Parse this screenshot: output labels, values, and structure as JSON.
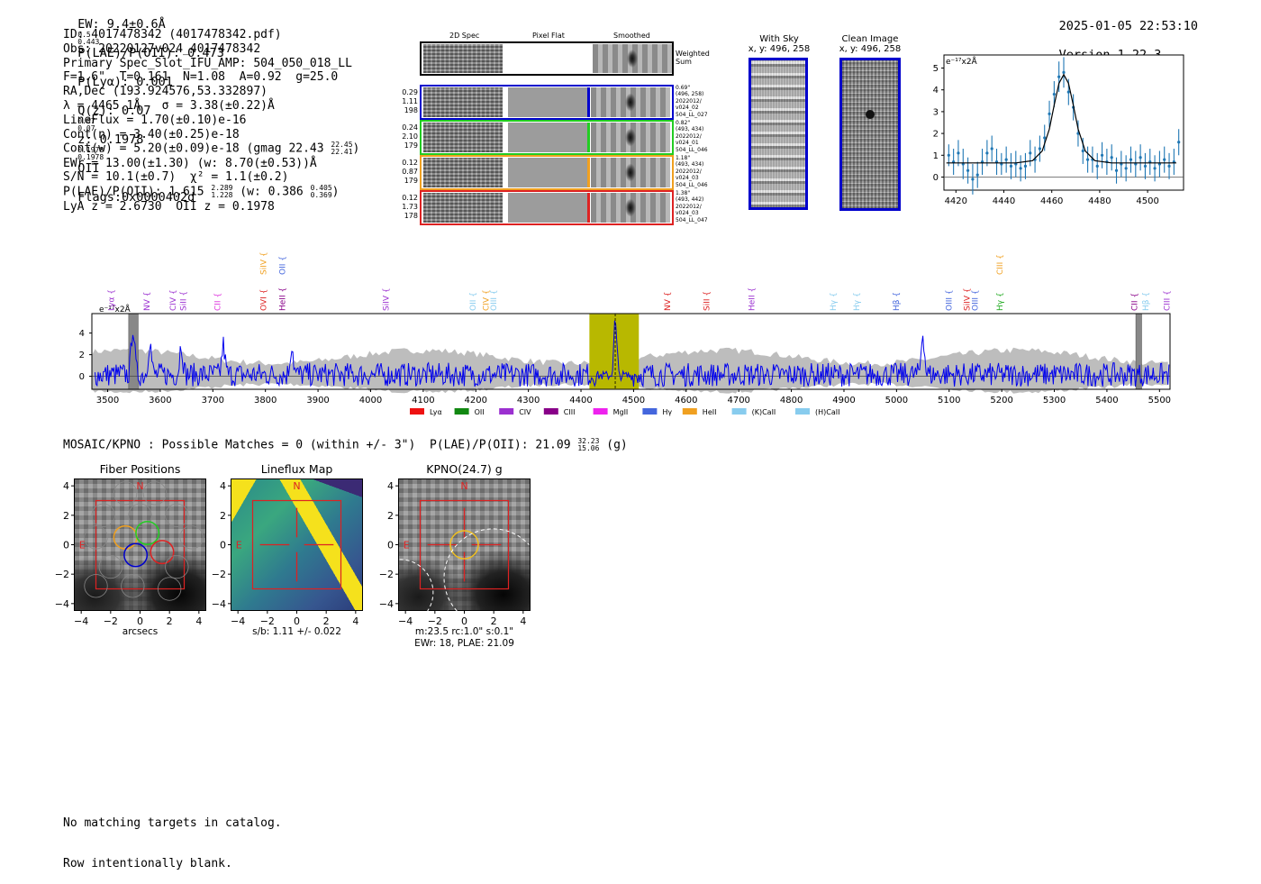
{
  "header": {
    "ew": "EW: 9.4±0.6Å",
    "ew_sup": "0.5",
    "ew_sub": "0.443",
    "plae_label": "P(LAE)/P(OII): 0.473",
    "plya": "P(Lyα): 0.001",
    "qz": "Q(z): 0.07",
    "qz_sup": "0.07",
    "qz_sub": "0.07",
    "z": "z: 0.1978",
    "z_sup": "0.1978",
    "z_sub": "0.1978",
    "z_line": "OII",
    "flags": "Flags:0x0000402d",
    "timestamp": "2025-01-05 22:53:10",
    "version": "Version 1.22.3"
  },
  "info": {
    "id": "ID: 4017478342 (4017478342.pdf)",
    "obs": "Obs: 20220127v024_4017478342",
    "primary": "Primary Spec_Slot_IFU_AMP: 504_050_018_LL",
    "params": "F=1.6\"  T=0.161  N=1.08  A=0.92  g=25.0",
    "radec": "RA,Dec (193.924576,53.332897)",
    "lambda": "λ = 4465.1Å   σ = 3.38(±0.22)Å",
    "lineflux": "LineFlux = 1.70(±0.10)e-16",
    "contn": "Cont(n) = 3.40(±0.25)e-18",
    "contw": "Cont(w) = 5.20(±0.09)e-18 (gmag 22.43",
    "contw_sup": "22.45",
    "contw_sub": "22.41",
    "contw_end": ")",
    "ewr": "EWr = 13.00(±1.30) (w: 8.70(±0.53))Å",
    "sn": "S/N = 10.1(±0.7)  χ² = 1.1(±0.2)",
    "plae": "P(LAE)/P(OII): 1.615",
    "plae_sup": "2.289",
    "plae_sub": "1.228",
    "plae_w": "(w: 0.386",
    "plae_w_sup": "0.405",
    "plae_w_sub": "0.369",
    "plae_end": ")",
    "lya": "LyA z = 2.6730  OII z = 0.1978"
  },
  "cutouts": {
    "col_labels": [
      "2D Spec",
      "Pixel Flat",
      "Smoothed"
    ],
    "weighted_label": "Weighted\nSum",
    "rows": [
      {
        "color": "#0000cc",
        "left": [
          "0.29",
          "1.11",
          "198"
        ],
        "right": [
          "0.69\"",
          "(496, 258)",
          "2022012/",
          "v024_02",
          "504_LL_027"
        ]
      },
      {
        "color": "#22cc22",
        "left": [
          "0.24",
          "2.10",
          "179"
        ],
        "right": [
          "0.82\"",
          "(493, 434)",
          "2022012/",
          "v024_01",
          "504_LL_046"
        ]
      },
      {
        "color": "#f0a020",
        "left": [
          "0.12",
          "0.87",
          "179"
        ],
        "right": [
          "1.18\"",
          "(493, 434)",
          "2022012/",
          "v024_03",
          "504_LL_046"
        ]
      },
      {
        "color": "#dd2222",
        "left": [
          "0.12",
          "1.73",
          "178"
        ],
        "right": [
          "1.38\"",
          "(493, 442)",
          "2022012/",
          "v024_03",
          "504_LL_047"
        ]
      }
    ]
  },
  "thumbs": {
    "sky_title": "With Sky",
    "sky_xy": "x, y: 496, 258",
    "clean_title": "Clean Image",
    "clean_xy": "x, y: 496, 258"
  },
  "zoom_fit": {
    "unit_label": "e⁻¹⁷x2Å",
    "x_ticks": [
      "4420",
      "4440",
      "4460",
      "4480",
      "4500"
    ],
    "y_ticks": [
      "5",
      "4",
      "3",
      "2",
      "1",
      "0"
    ]
  },
  "spectrum": {
    "unit_label": "e⁻¹⁷x2Å",
    "x_ticks": [
      "3500",
      "3600",
      "3700",
      "3800",
      "3900",
      "4000",
      "4100",
      "4200",
      "4300",
      "4400",
      "4500",
      "4600",
      "4700",
      "4800",
      "4900",
      "5000",
      "5100",
      "5200",
      "5300",
      "5400",
      "5500"
    ],
    "y_ticks": [
      "4",
      "2",
      "0"
    ],
    "line_labels": [
      {
        "text": "Lyα",
        "color": "#9b30d0",
        "lam": 3508,
        "row": 1
      },
      {
        "text": "NV",
        "color": "#9b30d0",
        "lam": 3575,
        "row": 1
      },
      {
        "text": "CIV",
        "color": "#9b30d0",
        "lam": 3625,
        "row": 1
      },
      {
        "text": "SiII",
        "color": "#9b30d0",
        "lam": 3645,
        "row": 1
      },
      {
        "text": "CII",
        "color": "#dd33dd",
        "lam": 3710,
        "row": 1
      },
      {
        "text": "SiIV",
        "color": "#f0a020",
        "lam": 3797,
        "row": 0
      },
      {
        "text": "OVI",
        "color": "#dd2222",
        "lam": 3797,
        "row": 1
      },
      {
        "text": "OII",
        "color": "#4466dd",
        "lam": 3833,
        "row": 0
      },
      {
        "text": "HeII",
        "color": "#880088",
        "lam": 3833,
        "row": 1
      },
      {
        "text": "SiIV",
        "color": "#9b30d0",
        "lam": 4030,
        "row": 1
      },
      {
        "text": "OII",
        "color": "#88ccee",
        "lam": 4195,
        "row": 1
      },
      {
        "text": "CIV",
        "color": "#f0a020",
        "lam": 4220,
        "row": 1
      },
      {
        "text": "OIII",
        "color": "#88ccee",
        "lam": 4235,
        "row": 1
      },
      {
        "text": "NV",
        "color": "#dd2222",
        "lam": 4565,
        "row": 1
      },
      {
        "text": "SiII",
        "color": "#dd2222",
        "lam": 4640,
        "row": 1
      },
      {
        "text": "HeII",
        "color": "#9b30d0",
        "lam": 4725,
        "row": 1
      },
      {
        "text": "Hγ",
        "color": "#88ccee",
        "lam": 4880,
        "row": 1
      },
      {
        "text": "Hγ",
        "color": "#88ccee",
        "lam": 4925,
        "row": 1
      },
      {
        "text": "Hβ",
        "color": "#4466dd",
        "lam": 5000,
        "row": 1
      },
      {
        "text": "OIII",
        "color": "#4466dd",
        "lam": 5100,
        "row": 1
      },
      {
        "text": "SiIV",
        "color": "#dd2222",
        "lam": 5135,
        "row": 1
      },
      {
        "text": "OIII",
        "color": "#4466dd",
        "lam": 5150,
        "row": 1
      },
      {
        "text": "CIII",
        "color": "#f0a020",
        "lam": 5197,
        "row": 0
      },
      {
        "text": "Hγ",
        "color": "#22aa22",
        "lam": 5197,
        "row": 1
      },
      {
        "text": "CII",
        "color": "#880088",
        "lam": 5453,
        "row": 1
      },
      {
        "text": "Hβ",
        "color": "#88ccee",
        "lam": 5475,
        "row": 1
      },
      {
        "text": "CIII",
        "color": "#9b30d0",
        "lam": 5515,
        "row": 1
      }
    ],
    "legend": [
      {
        "label": "Lyα",
        "color": "#ee1111"
      },
      {
        "label": "OII",
        "color": "#118811"
      },
      {
        "label": "CIV",
        "color": "#9b30d0"
      },
      {
        "label": "CIII",
        "color": "#880088"
      },
      {
        "label": "MgII",
        "color": "#ee22ee"
      },
      {
        "label": "Hγ",
        "color": "#4466dd"
      },
      {
        "label": "HeII",
        "color": "#f0a020"
      },
      {
        "label": "(K)CaII",
        "color": "#88ccee"
      },
      {
        "label": "(H)CaII",
        "color": "#88ccee"
      }
    ]
  },
  "chart_data": [
    {
      "type": "line",
      "title": "",
      "ylabel": "e⁻¹⁷x2Å",
      "xlim": [
        4415,
        4515
      ],
      "ylim": [
        -0.6,
        5.6
      ],
      "fit_x": [
        4416,
        4445,
        4452,
        4456,
        4459,
        4461,
        4463,
        4465,
        4467,
        4469,
        4471,
        4474,
        4478,
        4485,
        4512
      ],
      "fit_y": [
        0.65,
        0.65,
        0.75,
        1.2,
        2.2,
        3.3,
        4.3,
        4.7,
        4.3,
        3.3,
        2.2,
        1.2,
        0.75,
        0.65,
        0.65
      ],
      "points": [
        {
          "x": 4417,
          "y": 1.0,
          "err": 0.5
        },
        {
          "x": 4419,
          "y": 0.7,
          "err": 0.6
        },
        {
          "x": 4421,
          "y": 1.1,
          "err": 0.6
        },
        {
          "x": 4423,
          "y": 0.6,
          "err": 0.7
        },
        {
          "x": 4425,
          "y": 0.3,
          "err": 0.6
        },
        {
          "x": 4427,
          "y": -0.1,
          "err": 0.7
        },
        {
          "x": 4429,
          "y": 0.1,
          "err": 0.6
        },
        {
          "x": 4431,
          "y": 0.7,
          "err": 0.6
        },
        {
          "x": 4433,
          "y": 1.1,
          "err": 0.6
        },
        {
          "x": 4435,
          "y": 1.3,
          "err": 0.6
        },
        {
          "x": 4437,
          "y": 0.7,
          "err": 0.6
        },
        {
          "x": 4439,
          "y": 0.6,
          "err": 0.5
        },
        {
          "x": 4441,
          "y": 0.8,
          "err": 0.6
        },
        {
          "x": 4443,
          "y": 0.5,
          "err": 0.6
        },
        {
          "x": 4445,
          "y": 0.6,
          "err": 0.6
        },
        {
          "x": 4447,
          "y": 0.4,
          "err": 0.6
        },
        {
          "x": 4449,
          "y": 0.5,
          "err": 0.6
        },
        {
          "x": 4451,
          "y": 1.1,
          "err": 0.6
        },
        {
          "x": 4453,
          "y": 0.8,
          "err": 0.6
        },
        {
          "x": 4455,
          "y": 1.3,
          "err": 0.6
        },
        {
          "x": 4457,
          "y": 1.8,
          "err": 0.6
        },
        {
          "x": 4459,
          "y": 2.9,
          "err": 0.6
        },
        {
          "x": 4461,
          "y": 3.8,
          "err": 0.6
        },
        {
          "x": 4463,
          "y": 4.6,
          "err": 0.7
        },
        {
          "x": 4465,
          "y": 4.8,
          "err": 0.7
        },
        {
          "x": 4467,
          "y": 3.9,
          "err": 0.6
        },
        {
          "x": 4469,
          "y": 3.2,
          "err": 0.6
        },
        {
          "x": 4471,
          "y": 2.0,
          "err": 0.6
        },
        {
          "x": 4473,
          "y": 1.2,
          "err": 0.6
        },
        {
          "x": 4475,
          "y": 0.8,
          "err": 0.6
        },
        {
          "x": 4477,
          "y": 0.8,
          "err": 0.6
        },
        {
          "x": 4479,
          "y": 0.5,
          "err": 0.6
        },
        {
          "x": 4481,
          "y": 1.0,
          "err": 0.6
        },
        {
          "x": 4483,
          "y": 0.7,
          "err": 0.6
        },
        {
          "x": 4485,
          "y": 0.9,
          "err": 0.6
        },
        {
          "x": 4487,
          "y": 0.3,
          "err": 0.6
        },
        {
          "x": 4489,
          "y": 0.6,
          "err": 0.6
        },
        {
          "x": 4491,
          "y": 0.4,
          "err": 0.6
        },
        {
          "x": 4493,
          "y": 0.8,
          "err": 0.6
        },
        {
          "x": 4495,
          "y": 0.6,
          "err": 0.6
        },
        {
          "x": 4497,
          "y": 0.9,
          "err": 0.6
        },
        {
          "x": 4499,
          "y": 0.5,
          "err": 0.6
        },
        {
          "x": 4501,
          "y": 0.7,
          "err": 0.6
        },
        {
          "x": 4503,
          "y": 0.4,
          "err": 0.6
        },
        {
          "x": 4505,
          "y": 0.6,
          "err": 0.6
        },
        {
          "x": 4507,
          "y": 0.8,
          "err": 0.6
        },
        {
          "x": 4509,
          "y": 0.5,
          "err": 0.6
        },
        {
          "x": 4511,
          "y": 0.7,
          "err": 0.6
        },
        {
          "x": 4513,
          "y": 1.6,
          "err": 0.6
        }
      ]
    },
    {
      "type": "line",
      "title": "",
      "xlim": [
        3470,
        5520
      ],
      "ylim": [
        -1.2,
        5.8
      ],
      "highlight_range": [
        4416,
        4510
      ],
      "line_center": 4465.1,
      "masked_ranges": [
        [
          3540,
          3558
        ],
        [
          5455,
          5466
        ]
      ],
      "seed": 7,
      "peaks": [
        {
          "x": 3548,
          "y": 4.6
        },
        {
          "x": 3580,
          "y": 3.2
        },
        {
          "x": 3850,
          "y": 2.8
        },
        {
          "x": 4465,
          "y": 4.6
        },
        {
          "x": 5050,
          "y": 4.0
        },
        {
          "x": 3640,
          "y": 2.9
        },
        {
          "x": 3720,
          "y": 2.7
        }
      ]
    }
  ],
  "mosaic": {
    "header": "MOSAIC/KPNO : Possible Matches = 0 (within +/- 3\")  P(LAE)/P(OII): 21.09",
    "header_sup": "32.23",
    "header_sub": "15.06",
    "header_end": " (g)",
    "panels": [
      {
        "title": "Fiber Positions",
        "xlabel": "arcsecs",
        "caption": []
      },
      {
        "title": "Lineflux Map",
        "xlabel": "",
        "caption": [
          "s/b: 1.11 +/- 0.022"
        ]
      },
      {
        "title": "KPNO(24.7) g",
        "xlabel": "",
        "caption": [
          "m:23.5 rc:1.0\"  s:0.1\"",
          "EWr: 18, PLAE: 21.09"
        ]
      }
    ],
    "ticks": [
      "4",
      "2",
      "0",
      "−2",
      "−4"
    ],
    "xticks": [
      "−4",
      "−2",
      "0",
      "2",
      "4"
    ],
    "north": "N",
    "east": "E"
  },
  "footer": {
    "line1": "No matching targets in catalog.",
    "line2": "Row intentionally blank."
  }
}
